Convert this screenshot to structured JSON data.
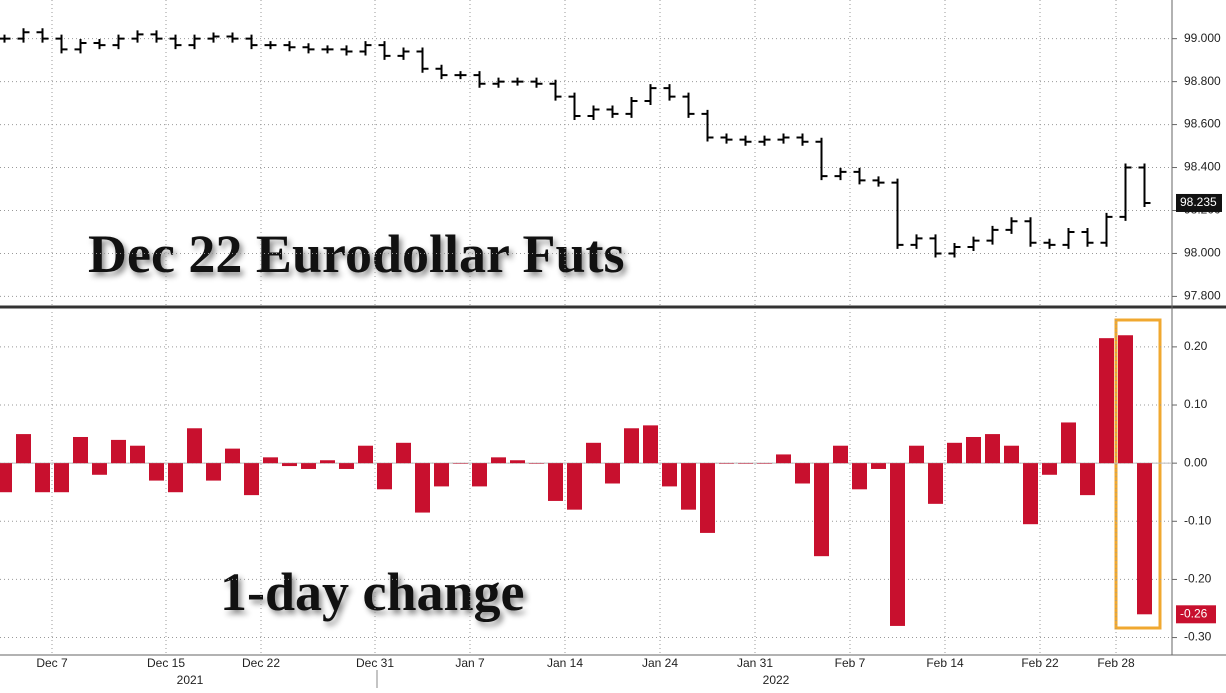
{
  "chart_data": [
    {
      "type": "line",
      "title": "Dec 22 Eurodollar Futs",
      "color": "#000000",
      "values": [
        99.0,
        99.03,
        99.0,
        98.95,
        98.98,
        98.97,
        99.0,
        99.02,
        99.0,
        98.97,
        99.0,
        99.01,
        99.0,
        98.97,
        98.97,
        98.96,
        98.95,
        98.95,
        98.94,
        98.97,
        98.92,
        98.94,
        98.86,
        98.83,
        98.83,
        98.79,
        98.8,
        98.8,
        98.79,
        98.73,
        98.64,
        98.67,
        98.65,
        98.71,
        98.77,
        98.73,
        98.65,
        98.54,
        98.53,
        98.52,
        98.53,
        98.54,
        98.52,
        98.36,
        98.38,
        98.34,
        98.33,
        98.04,
        98.07,
        98.0,
        98.03,
        98.06,
        98.11,
        98.15,
        98.05,
        98.04,
        98.1,
        98.05,
        98.17,
        98.4,
        98.235
      ],
      "ylim": [
        97.76,
        99.18
      ],
      "yticks": [
        {
          "value": 97.8,
          "label": "97.800"
        },
        {
          "value": 98.0,
          "label": "98.000"
        },
        {
          "value": 98.2,
          "label": "98.200"
        },
        {
          "value": 98.4,
          "label": "98.400"
        },
        {
          "value": 98.6,
          "label": "98.600"
        },
        {
          "value": 98.8,
          "label": "98.800"
        },
        {
          "value": 99.0,
          "label": "99.000"
        }
      ],
      "grid": true
    },
    {
      "type": "bar",
      "title": "1-day change",
      "color": "#c8102e",
      "categories": [
        null,
        null,
        "Dec 7",
        null,
        null,
        null,
        null,
        null,
        "Dec 15",
        null,
        null,
        null,
        null,
        "Dec 22",
        null,
        null,
        null,
        null,
        null,
        "Dec 31",
        null,
        null,
        null,
        null,
        "Jan 7",
        null,
        null,
        null,
        null,
        "Jan 14",
        null,
        null,
        null,
        null,
        "Jan 24",
        null,
        null,
        null,
        null,
        "Jan 31",
        null,
        null,
        null,
        null,
        "Feb 7",
        null,
        null,
        null,
        null,
        "Feb 14",
        null,
        null,
        null,
        null,
        "Feb 22",
        null,
        null,
        null,
        "Feb 28",
        null,
        null
      ],
      "years": [
        "2021",
        "2022"
      ],
      "values": [
        -0.05,
        0.05,
        -0.05,
        -0.05,
        0.045,
        -0.02,
        0.04,
        0.03,
        -0.03,
        -0.05,
        0.06,
        -0.03,
        0.025,
        -0.055,
        0.01,
        -0.005,
        -0.01,
        0.005,
        -0.01,
        0.03,
        -0.045,
        0.035,
        -0.085,
        -0.04,
        0.0,
        -0.04,
        0.01,
        0.005,
        0.0,
        -0.065,
        -0.08,
        0.035,
        -0.035,
        0.06,
        0.065,
        -0.04,
        -0.08,
        -0.12,
        0.0,
        0.0,
        0.0,
        0.015,
        -0.035,
        -0.16,
        0.03,
        -0.045,
        -0.01,
        -0.28,
        0.03,
        -0.07,
        0.035,
        0.045,
        0.05,
        0.03,
        -0.105,
        -0.02,
        0.07,
        -0.055,
        0.215,
        0.22,
        -0.26
      ],
      "ylim": [
        -0.33,
        0.26
      ],
      "yticks": [
        {
          "value": -0.3,
          "label": "-0.30"
        },
        {
          "value": -0.2,
          "label": "-0.20"
        },
        {
          "value": -0.1,
          "label": "-0.10"
        },
        {
          "value": 0,
          "label": "0.00"
        },
        {
          "value": 0.1,
          "label": "0.10"
        },
        {
          "value": 0.2,
          "label": "0.20"
        }
      ],
      "grid": true
    }
  ]
}
